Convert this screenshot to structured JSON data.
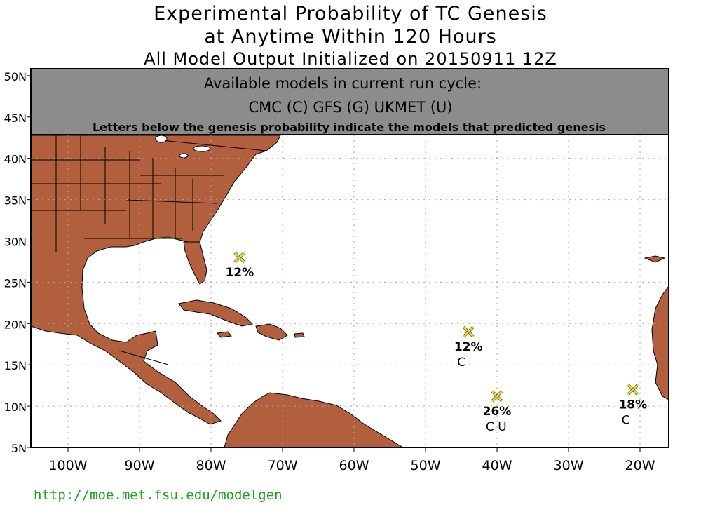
{
  "title": {
    "line1": "Experimental Probability of TC Genesis",
    "line2": "at Anytime Within 120 Hours",
    "line3": "All Model Output Initialized on 20150911 12Z"
  },
  "banner": {
    "line1": "Available models in current run cycle:",
    "line2": "CMC (C) GFS (G)  UKMET (U)",
    "line3": "Letters below the genesis probability indicate the models that predicted genesis"
  },
  "axes": {
    "lon_labels": [
      "100W",
      "90W",
      "80W",
      "70W",
      "60W",
      "50W",
      "40W",
      "30W",
      "20W"
    ],
    "lat_labels": [
      "50N",
      "45N",
      "40N",
      "35N",
      "30N",
      "25N",
      "20N",
      "15N",
      "10N",
      "5N"
    ]
  },
  "markers": [
    {
      "lon": -76,
      "lat": 28,
      "prob": "12%",
      "models": ""
    },
    {
      "lon": -44,
      "lat": 19,
      "prob": "12%",
      "models": "C"
    },
    {
      "lon": -40,
      "lat": 11.2,
      "prob": "26%",
      "models": "C  U"
    },
    {
      "lon": -21,
      "lat": 12,
      "prob": "18%",
      "models": "C"
    }
  ],
  "colors": {
    "land": "#b15f3c",
    "banner": "#8c8c8c",
    "marker": "#f0e020",
    "url": "#1aa31a"
  },
  "footer": {
    "url": "http://moe.met.fsu.edu/modelgen"
  }
}
